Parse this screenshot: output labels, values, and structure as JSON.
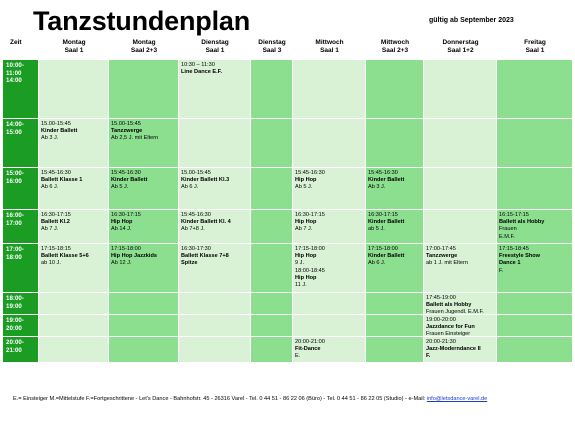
{
  "title": "Tanzstundenplan",
  "validity": "gültig ab September 2023",
  "columns": [
    {
      "day": "Zeit",
      "room": ""
    },
    {
      "day": "Montag",
      "room": "Saal 1"
    },
    {
      "day": "Montag",
      "room": "Saal 2+3"
    },
    {
      "day": "Dienstag",
      "room": "Saal 1"
    },
    {
      "day": "Dienstag",
      "room": "Saal 3"
    },
    {
      "day": "Mittwoch",
      "room": "Saal 1"
    },
    {
      "day": "Mittwoch",
      "room": "Saal 2+3"
    },
    {
      "day": "Donnerstag",
      "room": "Saal 1+2"
    },
    {
      "day": "Freitag",
      "room": "Saal 1"
    }
  ],
  "rows": [
    {
      "time": [
        "10:00-",
        "11:00",
        "14:00"
      ],
      "cells": [
        [],
        [],
        [
          {
            "t": "10:30 – 11:30",
            "b": false
          },
          {
            "t": "Line Dance E.F.",
            "b": true
          }
        ],
        [],
        [],
        [],
        [],
        []
      ]
    },
    {
      "time": [
        "14:00-",
        "15:00"
      ],
      "cells": [
        [
          {
            "t": "15.00-15:45",
            "b": false
          },
          {
            "t": "Kinder Ballett",
            "b": true
          },
          {
            "t": "Ab 3 J.",
            "b": false
          }
        ],
        [
          {
            "t": "15.00-15:45",
            "b": false
          },
          {
            "t": "Tanzzwerge",
            "b": true
          },
          {
            "t": "Ab 2,5 J. mit Eltern",
            "b": false
          }
        ],
        [],
        [],
        [],
        [],
        [],
        []
      ]
    },
    {
      "time": [
        "15:00-",
        "16:00"
      ],
      "cells": [
        [
          {
            "t": "15:45-16:30",
            "b": false
          },
          {
            "t": "Ballett Klasse 1",
            "b": true
          },
          {
            "t": "Ab 6 J.",
            "b": false
          }
        ],
        [
          {
            "t": "15:45-16:30",
            "b": false
          },
          {
            "t": "Kinder Ballett",
            "b": true
          },
          {
            "t": "Ab 5 J.",
            "b": false
          }
        ],
        [
          {
            "t": "15.00-15:45",
            "b": false
          },
          {
            "t": "Kinder Ballett Kl.3",
            "b": true
          },
          {
            "t": "Ab 6 J.",
            "b": false
          }
        ],
        [],
        [
          {
            "t": "15:45-16:30",
            "b": false
          },
          {
            "t": "Hip Hop",
            "b": true
          },
          {
            "t": "Ab 5 J.",
            "b": false
          }
        ],
        [
          {
            "t": "15:45-16:30",
            "b": false
          },
          {
            "t": "Kinder Ballett",
            "b": true
          },
          {
            "t": "Ab 3 J.",
            "b": false
          }
        ],
        [],
        []
      ]
    },
    {
      "time": [
        "16:00-",
        "17:00"
      ],
      "cells": [
        [
          {
            "t": "16:30-17:15",
            "b": false
          },
          {
            "t": "Ballett Kl.2",
            "b": true
          },
          {
            "t": "Ab 7 J.",
            "b": false
          }
        ],
        [
          {
            "t": "16:30-17:15",
            "b": false
          },
          {
            "t": "Hip Hop",
            "b": true
          },
          {
            "t": "Ab 14 J.",
            "b": false
          }
        ],
        [
          {
            "t": "15:45-16:30",
            "b": false
          },
          {
            "t": "Kinder Ballett Kl. 4",
            "b": true
          },
          {
            "t": "Ab 7+8 J.",
            "b": false
          }
        ],
        [],
        [
          {
            "t": "16:30-17:15",
            "b": false
          },
          {
            "t": "Hip Hop",
            "b": true
          },
          {
            "t": "Ab 7 J.",
            "b": false
          }
        ],
        [
          {
            "t": "16:30-17:15",
            "b": false
          },
          {
            "t": "Kinder Ballett",
            "b": true
          },
          {
            "t": "ab 5 J.",
            "b": false
          }
        ],
        [],
        [
          {
            "t": "16:15-17:15",
            "b": false
          },
          {
            "t": "Ballett als Hobby",
            "b": true
          },
          {
            "t": "Frauen",
            "b": false
          },
          {
            "t": "E.M.F.",
            "b": false
          }
        ]
      ]
    },
    {
      "time": [
        "17:00-",
        "18:00"
      ],
      "cells": [
        [
          {
            "t": "17:15-18:15",
            "b": false
          },
          {
            "t": "Ballett Klasse 5+6",
            "b": true
          },
          {
            "t": "ab 10 J.",
            "b": false
          }
        ],
        [
          {
            "t": "17:15-18:00",
            "b": false
          },
          {
            "t": "Hip Hop Jazzkids",
            "b": true
          },
          {
            "t": "Ab 12 J.",
            "b": false
          }
        ],
        [
          {
            "t": "16:30-17:30",
            "b": false
          },
          {
            "t": "Ballett Klasse 7+8",
            "b": true
          },
          {
            "t": "Spitze",
            "b": true
          }
        ],
        [],
        [
          {
            "t": "17:15-18:00",
            "b": false
          },
          {
            "t": "Hip Hop",
            "b": true
          },
          {
            "t": "9 J.",
            "b": false
          },
          {
            "t": "18:00-18:45",
            "b": false
          },
          {
            "t": "Hip Hop",
            "b": true
          },
          {
            "t": "11 J.",
            "b": false
          }
        ],
        [
          {
            "t": "17:15-18:00",
            "b": false
          },
          {
            "t": "Kinder Ballett",
            "b": true
          },
          {
            "t": "Ab 6 J.",
            "b": false
          }
        ],
        [
          {
            "t": "17:00-17:45",
            "b": false
          },
          {
            "t": "Tanzzwerge",
            "b": true
          },
          {
            "t": "ab 1 J. mit Eltern",
            "b": false
          }
        ],
        [
          {
            "t": "17:15-18:45",
            "b": false
          },
          {
            "t": "Freestyle Show",
            "b": true
          },
          {
            "t": "Dance 1",
            "b": true
          },
          {
            "t": "F.",
            "b": false
          }
        ]
      ]
    },
    {
      "time": [
        "18:00-",
        "19:00"
      ],
      "cells": [
        [],
        [],
        [],
        [],
        [],
        [],
        [
          {
            "t": "17:45-19:00",
            "b": false
          },
          {
            "t": "Ballett als Hobby",
            "b": true
          },
          {
            "t": "Frauen Jugendl. E.M.F.",
            "b": false
          }
        ],
        []
      ]
    },
    {
      "time": [
        "19:00-",
        "20:00"
      ],
      "cells": [
        [],
        [],
        [],
        [],
        [],
        [],
        [
          {
            "t": "19:00-20:00",
            "b": false
          },
          {
            "t": "Jazzdance for Fun",
            "b": true
          },
          {
            "t": "Frauen Einsteiger",
            "b": false
          }
        ],
        []
      ]
    },
    {
      "time": [
        "20:00-",
        "21:00"
      ],
      "cells": [
        [],
        [],
        [],
        [],
        [
          {
            "t": "20:00-21:00",
            "b": false
          },
          {
            "t": "Fit-Dance",
            "b": true
          },
          {
            "t": "E.",
            "b": false
          }
        ],
        [],
        [
          {
            "t": "20:00-21:30",
            "b": false
          },
          {
            "t": "Jazz-Moderndance II",
            "b": true
          },
          {
            "t": "F.",
            "b": true
          }
        ],
        []
      ]
    }
  ],
  "footer": {
    "text": "E.= Einsteiger   M.=Mittelstufe   F.=Fortgeschrittene - Let's Dance - Bahnhofstr. 45 - 26316 Varel - Tel. 0 44 51 - 86 22 06 (Büro)  - Tel. 0 44 51 - 86 22 05 (Studio)  - e-Mail: ",
    "email": "info@letsdance-varel.de"
  },
  "colors": {
    "time_column": "#1b9d24",
    "light_cell": "#d9f2d6",
    "dark_cell": "#8ddf90"
  }
}
